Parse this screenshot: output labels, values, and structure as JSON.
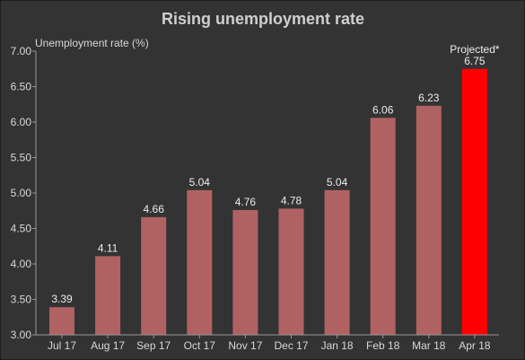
{
  "chart_data": {
    "type": "bar",
    "title": "Rising unemployment rate",
    "ylabel": "Unemployment rate (%)",
    "xlabel": "",
    "categories": [
      "Jul 17",
      "Aug 17",
      "Sep 17",
      "Oct 17",
      "Nov 17",
      "Dec 17",
      "Jan 18",
      "Feb 18",
      "Mar 18",
      "Apr 18"
    ],
    "values": [
      3.39,
      4.11,
      4.66,
      5.04,
      4.76,
      4.78,
      5.04,
      6.06,
      6.23,
      6.75
    ],
    "value_labels": [
      "3.39",
      "4.11",
      "4.66",
      "5.04",
      "4.76",
      "4.78",
      "5.04",
      "6.06",
      "6.23",
      "6.75"
    ],
    "ylim": [
      3.0,
      7.0
    ],
    "yticks": [
      "3.00",
      "3.50",
      "4.00",
      "4.50",
      "5.00",
      "5.50",
      "6.00",
      "6.50",
      "7.00"
    ],
    "grid": false,
    "highlight_index": 9,
    "annotation": "Projected*",
    "colors": {
      "bar": "#b06262",
      "highlight": "#ff0000"
    }
  }
}
